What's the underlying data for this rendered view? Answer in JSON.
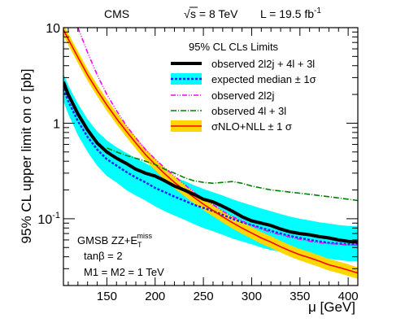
{
  "chart_data": {
    "type": "line",
    "header": {
      "experiment": "CMS",
      "energy_prefix": "s = 8 TeV",
      "energy_sqrt": "√",
      "lumi": "L = 19.5 fb",
      "lumi_sup": "-1"
    },
    "xlabel": "μ  [GeV]",
    "ylabel": "95% CL upper limit on σ  [pb]",
    "xlim": [
      105,
      410
    ],
    "ylim": [
      0.02,
      10
    ],
    "y_scale": "log",
    "x_ticks": [
      150,
      200,
      250,
      300,
      350,
      400
    ],
    "x_tick_labels": [
      "150",
      "200",
      "250",
      "300",
      "350",
      "400"
    ],
    "y_major_ticks": [
      {
        "value": 0.1,
        "label": "10",
        "sup": "-1"
      },
      {
        "value": 1,
        "label": "1",
        "sup": ""
      },
      {
        "value": 10,
        "label": "10",
        "sup": ""
      }
    ],
    "legend": {
      "title": "95% CL CLs Limits",
      "placement": "top-right",
      "entries": [
        {
          "key": "observed_combined",
          "label": "observed 2l2j + 4l + 3l"
        },
        {
          "key": "expected",
          "label": "expected median ± 1σ"
        },
        {
          "key": "observed_2l2j",
          "label": "observed 2l2j"
        },
        {
          "key": "observed_4l3l",
          "label": "observed 4l + 3l"
        },
        {
          "key": "theory",
          "label": "σNLO+NLL ± 1 σ"
        }
      ]
    },
    "annotation": {
      "line1": "GMSB  ZZ+E",
      "line1_sub": "T",
      "line1_sup": "miss",
      "line2": "tanβ = 2",
      "line3": "M1 = M2 = 1 TeV"
    },
    "colors": {
      "observed_combined": "#000000",
      "expected": "#1f1fff",
      "band": "#00ffff",
      "observed_2l2j": "#ff00ff",
      "observed_4l3l": "#008000",
      "theory_line": "#ff0000",
      "theory_band": "#ffd700"
    },
    "series": [
      {
        "key": "observed_combined",
        "name": "observed 2l2j + 4l + 3l",
        "x": [
          105,
          110,
          120,
          130,
          140,
          150,
          160,
          170,
          180,
          190,
          200,
          210,
          220,
          230,
          240,
          250,
          260,
          270,
          280,
          290,
          300,
          310,
          320,
          330,
          340,
          350,
          360,
          370,
          380,
          390,
          400,
          410
        ],
        "y": [
          2.7,
          2.0,
          1.25,
          0.85,
          0.62,
          0.5,
          0.43,
          0.38,
          0.33,
          0.3,
          0.28,
          0.25,
          0.22,
          0.2,
          0.18,
          0.16,
          0.15,
          0.135,
          0.12,
          0.105,
          0.095,
          0.09,
          0.085,
          0.078,
          0.073,
          0.07,
          0.068,
          0.065,
          0.063,
          0.06,
          0.058,
          0.057
        ]
      },
      {
        "key": "expected",
        "name": "expected median ± 1σ",
        "x": [
          105,
          110,
          120,
          130,
          140,
          150,
          160,
          170,
          180,
          190,
          200,
          210,
          220,
          230,
          240,
          250,
          260,
          270,
          280,
          290,
          300,
          310,
          320,
          330,
          340,
          350,
          360,
          370,
          380,
          390,
          400,
          410
        ],
        "y": [
          2.3,
          1.7,
          1.05,
          0.72,
          0.53,
          0.42,
          0.36,
          0.31,
          0.27,
          0.24,
          0.21,
          0.19,
          0.17,
          0.155,
          0.14,
          0.13,
          0.12,
          0.11,
          0.1,
          0.092,
          0.086,
          0.08,
          0.075,
          0.07,
          0.066,
          0.063,
          0.06,
          0.058,
          0.056,
          0.055,
          0.054,
          0.054
        ],
        "band_low": [
          1.7,
          1.25,
          0.75,
          0.5,
          0.36,
          0.28,
          0.24,
          0.2,
          0.175,
          0.155,
          0.135,
          0.12,
          0.108,
          0.098,
          0.088,
          0.08,
          0.074,
          0.068,
          0.062,
          0.058,
          0.054,
          0.05,
          0.047,
          0.045,
          0.043,
          0.041,
          0.04,
          0.039,
          0.038,
          0.037,
          0.036,
          0.036
        ],
        "band_high": [
          3.3,
          2.5,
          1.6,
          1.1,
          0.82,
          0.66,
          0.56,
          0.49,
          0.43,
          0.38,
          0.34,
          0.3,
          0.27,
          0.25,
          0.225,
          0.205,
          0.19,
          0.175,
          0.16,
          0.148,
          0.138,
          0.128,
          0.12,
          0.112,
          0.105,
          0.1,
          0.096,
          0.092,
          0.089,
          0.086,
          0.084,
          0.083
        ]
      },
      {
        "key": "observed_2l2j",
        "name": "observed 2l2j",
        "x": [
          120,
          130,
          140,
          150,
          160,
          170,
          180,
          190,
          200,
          210,
          220,
          230,
          240,
          250,
          260,
          270,
          280,
          290,
          300,
          310,
          320,
          330,
          340,
          350,
          360,
          370,
          380,
          390,
          400,
          410
        ],
        "y": [
          10,
          5.5,
          3.2,
          2.0,
          1.35,
          0.95,
          0.7,
          0.53,
          0.42,
          0.34,
          0.28,
          0.23,
          0.19,
          0.16,
          0.14,
          0.12,
          0.105,
          0.095,
          0.085,
          0.078,
          0.072,
          0.068,
          0.064,
          0.061,
          0.058,
          0.056,
          0.055,
          0.054,
          0.053,
          0.053
        ]
      },
      {
        "key": "observed_4l3l",
        "name": "observed 4l + 3l",
        "x": [
          150,
          160,
          170,
          180,
          190,
          200,
          210,
          220,
          230,
          240,
          250,
          260,
          270,
          280,
          290,
          300,
          310,
          320,
          330,
          340,
          350,
          360,
          370,
          380,
          390,
          400,
          410
        ],
        "y": [
          0.55,
          0.5,
          0.46,
          0.43,
          0.4,
          0.37,
          0.33,
          0.3,
          0.27,
          0.25,
          0.24,
          0.235,
          0.24,
          0.245,
          0.235,
          0.22,
          0.21,
          0.2,
          0.195,
          0.19,
          0.185,
          0.18,
          0.175,
          0.17,
          0.165,
          0.16,
          0.155
        ]
      },
      {
        "key": "theory",
        "name": "σNLO+NLL ± 1 σ",
        "x": [
          105,
          110,
          120,
          130,
          140,
          150,
          160,
          170,
          180,
          190,
          200,
          210,
          220,
          230,
          240,
          250,
          260,
          270,
          280,
          290,
          300,
          310,
          320,
          330,
          340,
          350,
          360,
          370,
          380,
          390,
          400,
          410
        ],
        "y": [
          9.5,
          7.6,
          4.9,
          3.2,
          2.2,
          1.55,
          1.12,
          0.83,
          0.62,
          0.47,
          0.37,
          0.295,
          0.24,
          0.2,
          0.168,
          0.142,
          0.122,
          0.105,
          0.091,
          0.08,
          0.071,
          0.063,
          0.057,
          0.051,
          0.046,
          0.042,
          0.039,
          0.036,
          0.033,
          0.031,
          0.029,
          0.027
        ]
      }
    ]
  }
}
